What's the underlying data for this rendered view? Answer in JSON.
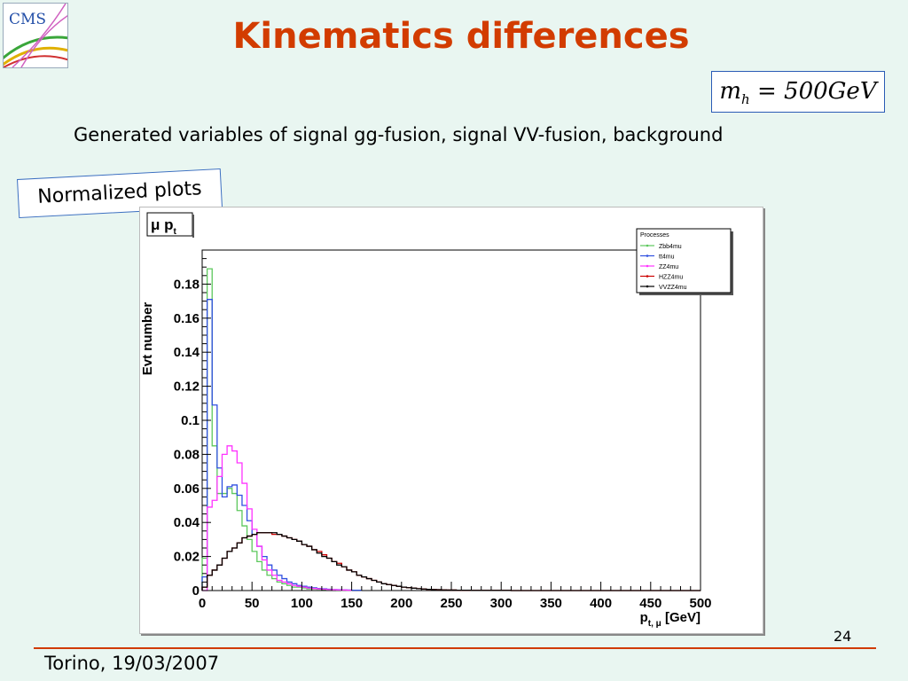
{
  "slide": {
    "title": "Kinematics differences",
    "mass_symbol": "m",
    "mass_subscript": "h",
    "mass_value": " = 500GeV",
    "subtitle": "Generated variables of  signal gg-fusion, signal VV-fusion, background",
    "normalized_label": "Normalized plots",
    "page_number": "24",
    "footer": "Torino, 19/03/2007",
    "logo_text": "CMS"
  },
  "colors": {
    "title": "#d23c00",
    "footer_line": "#d03a00",
    "background": "#e9f6f1"
  },
  "chart_data": {
    "type": "line",
    "title": "μ  p",
    "title_subscript": "t",
    "xlabel": "p",
    "xlabel_subscript": "t, μ",
    "xlabel_unit": " [GeV]",
    "ylabel": "Evt number",
    "xlim": [
      0,
      500
    ],
    "ylim": [
      0,
      0.2
    ],
    "x_ticks": [
      0,
      50,
      100,
      150,
      200,
      250,
      300,
      350,
      400,
      450,
      500
    ],
    "x_tick_labels": [
      "0",
      "50",
      "100",
      "150",
      "200",
      "250",
      "300",
      "350",
      "400",
      "450",
      "500"
    ],
    "y_ticks": [
      0,
      0.02,
      0.04,
      0.06,
      0.08,
      0.1,
      0.12,
      0.14,
      0.16,
      0.18
    ],
    "y_tick_labels": [
      "0",
      "0.02",
      "0.04",
      "0.06",
      "0.08",
      "0.1",
      "0.12",
      "0.14",
      "0.16",
      "0.18"
    ],
    "grid": false,
    "legend_title": "Processes",
    "legend_position": "top-right",
    "bin_width": 5,
    "series": [
      {
        "name": "Zbb4mu",
        "color": "#5cc85c",
        "values": [
          0.019,
          0.189,
          0.085,
          0.057,
          0.057,
          0.06,
          0.057,
          0.047,
          0.038,
          0.03,
          0.023,
          0.017,
          0.012,
          0.009,
          0.007,
          0.005,
          0.004,
          0.003,
          0.002,
          0.002,
          0.0015,
          0.001,
          0.001,
          0.0008,
          0.0006,
          0.0005,
          0.0004,
          0.0003,
          0.0002,
          0.0002
        ]
      },
      {
        "name": "tt4mu",
        "color": "#3050e0",
        "values": [
          0.008,
          0.171,
          0.109,
          0.072,
          0.055,
          0.061,
          0.062,
          0.056,
          0.05,
          0.041,
          0.033,
          0.026,
          0.02,
          0.015,
          0.012,
          0.009,
          0.007,
          0.005,
          0.004,
          0.003,
          0.0025,
          0.002,
          0.0016,
          0.0012,
          0.001,
          0.0008,
          0.0006,
          0.0005,
          0.0004,
          0.0003,
          0.0002,
          0.0002
        ]
      },
      {
        "name": "ZZ4mu",
        "color": "#ff33ff",
        "values": [
          0.0,
          0.049,
          0.053,
          0.067,
          0.08,
          0.085,
          0.082,
          0.075,
          0.063,
          0.048,
          0.036,
          0.026,
          0.018,
          0.012,
          0.009,
          0.006,
          0.005,
          0.004,
          0.003,
          0.0025,
          0.002,
          0.0015,
          0.0012,
          0.001,
          0.0008,
          0.0006,
          0.0005,
          0.0004,
          0.0003,
          0.0002
        ]
      },
      {
        "name": "HZZ4mu",
        "color": "#cc0000",
        "values": [
          0.002,
          0.009,
          0.012,
          0.015,
          0.019,
          0.023,
          0.025,
          0.028,
          0.031,
          0.032,
          0.033,
          0.034,
          0.034,
          0.034,
          0.033,
          0.033,
          0.032,
          0.031,
          0.03,
          0.029,
          0.027,
          0.026,
          0.024,
          0.023,
          0.021,
          0.019,
          0.017,
          0.016,
          0.014,
          0.012,
          0.011,
          0.009,
          0.008,
          0.007,
          0.006,
          0.005,
          0.004,
          0.0035,
          0.003,
          0.0025,
          0.002,
          0.0017,
          0.0014,
          0.0011,
          0.0009,
          0.0007,
          0.0006,
          0.0005,
          0.0004,
          0.0003,
          0.0003,
          0.0002,
          0.0002,
          0.0002,
          0.0001,
          0.0001,
          0.0001,
          0.0001,
          0.0001,
          0.0001,
          0.0001,
          0.0001,
          0.0,
          0.0,
          0.0,
          0.0,
          0.0,
          0.0,
          0.0,
          0.0,
          0.0,
          0.0,
          0.0,
          0.0,
          0.0,
          0.0,
          0.0,
          0.0,
          0.0,
          0.0,
          0.0,
          0.0,
          0.0,
          0.0,
          0.0,
          0.0,
          0.0,
          0.0,
          0.0,
          0.0,
          0.0,
          0.0,
          0.0,
          0.0,
          0.0,
          0.0,
          0.0,
          0.0,
          0.0,
          0.0
        ]
      },
      {
        "name": "VVZZ4mu",
        "color": "#000000",
        "values": [
          0.002,
          0.009,
          0.012,
          0.015,
          0.019,
          0.023,
          0.025,
          0.028,
          0.031,
          0.032,
          0.033,
          0.034,
          0.034,
          0.034,
          0.034,
          0.033,
          0.032,
          0.031,
          0.03,
          0.029,
          0.027,
          0.026,
          0.024,
          0.022,
          0.02,
          0.019,
          0.017,
          0.015,
          0.014,
          0.012,
          0.011,
          0.009,
          0.008,
          0.007,
          0.006,
          0.005,
          0.004,
          0.0035,
          0.003,
          0.0025,
          0.002,
          0.0017,
          0.0014,
          0.0011,
          0.0009,
          0.0007,
          0.0006,
          0.0005,
          0.0004,
          0.0003,
          0.0003,
          0.0002,
          0.0002,
          0.0002,
          0.0001,
          0.0001,
          0.0001,
          0.0001,
          0.0001,
          0.0001,
          0.0001,
          0.0001,
          0.0,
          0.0,
          0.0,
          0.0,
          0.0,
          0.0,
          0.0,
          0.0,
          0.0,
          0.0,
          0.0,
          0.0,
          0.0,
          0.0,
          0.0,
          0.0,
          0.0,
          0.0,
          0.0,
          0.0,
          0.0,
          0.0,
          0.0,
          0.0,
          0.0,
          0.0,
          0.0,
          0.0,
          0.0,
          0.0,
          0.0,
          0.0,
          0.0,
          0.0,
          0.0,
          0.0,
          0.0,
          0.0
        ]
      }
    ]
  }
}
